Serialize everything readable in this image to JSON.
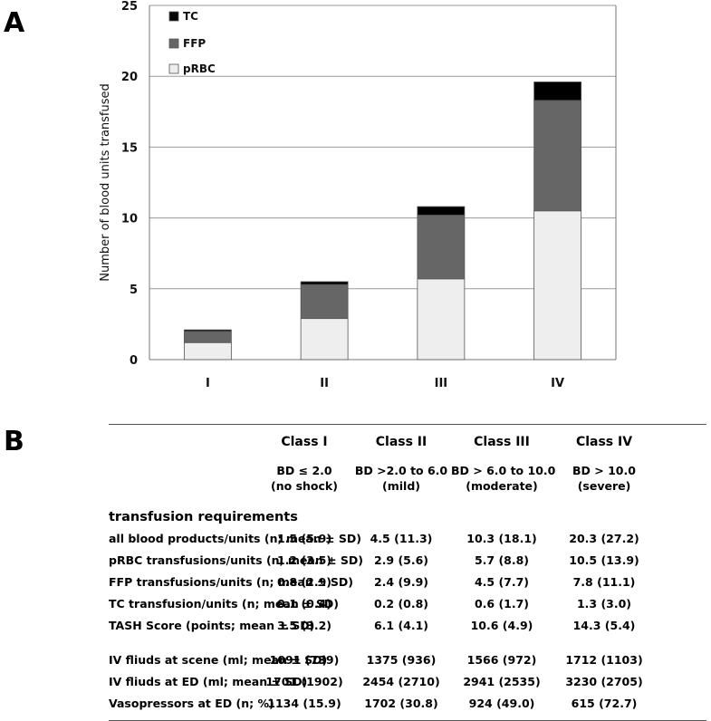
{
  "panel_a": "A",
  "panel_b": "B",
  "chart_data": {
    "type": "bar",
    "stacked": true,
    "categories": [
      "I",
      "II",
      "III",
      "IV"
    ],
    "series": [
      {
        "name": "pRBC",
        "color": "#eeeeee",
        "values": [
          1.2,
          2.9,
          5.7,
          10.5
        ]
      },
      {
        "name": "FFP",
        "color": "#666666",
        "values": [
          0.8,
          2.4,
          4.5,
          7.8
        ]
      },
      {
        "name": "TC",
        "color": "#000000",
        "values": [
          0.1,
          0.2,
          0.6,
          1.3
        ]
      }
    ],
    "legend": [
      "TC",
      "FFP",
      "pRBC"
    ],
    "ylabel": "Number of blood units transfused",
    "xlabel": "",
    "ylim": [
      0,
      25
    ],
    "yticks": [
      0,
      5,
      10,
      15,
      20,
      25
    ],
    "grid": true
  },
  "table": {
    "columns": [
      "Class I",
      "Class II",
      "Class III",
      "Class IV"
    ],
    "definitions": [
      [
        "BD ≤ 2.0",
        "(no shock)"
      ],
      [
        "BD >2.0 to 6.0",
        "(mild)"
      ],
      [
        "BD > 6.0 to 10.0",
        "(moderate)"
      ],
      [
        "BD > 10.0",
        "(severe)"
      ]
    ],
    "section_title": "transfusion requirements",
    "rows": [
      {
        "label": "all blood products/units (n; mean ± SD)",
        "values": [
          "1.5 (5.9)",
          "4.5 (11.3)",
          "10.3 (18.1)",
          "20.3 (27.2)"
        ]
      },
      {
        "label": "pRBC transfusions/units (n; mean ± SD)",
        "values": [
          "1.2 (3.5)",
          "2.9 (5.6)",
          "5.7 (8.8)",
          "10.5 (13.9)"
        ]
      },
      {
        "label": "FFP transfusions/units (n; mean ± SD)",
        "values": [
          "0.8 (2.9)",
          "2.4 (9.9)",
          "4.5 (7.7)",
          "7.8 (11.1)"
        ]
      },
      {
        "label": "TC transfusion/units (n; mean ± SD)",
        "values": [
          "0.1 (0.4)",
          "0.2 (0.8)",
          "0.6 (1.7)",
          "1.3 (3.0)"
        ]
      },
      {
        "label": "TASH Score (points; mean ± SD)",
        "values": [
          "3.5 (3.2)",
          "6.1 (4.1)",
          "10.6 (4.9)",
          "14.3 (5.4)"
        ]
      }
    ],
    "rows2": [
      {
        "label": "IV fliuds at scene (ml; mean ± SD)",
        "values": [
          "1091 (739)",
          "1375 (936)",
          "1566 (972)",
          "1712 (1103)"
        ]
      },
      {
        "label": "IV fliuds at ED (ml; mean ± SD)",
        "values": [
          "1701 (1902)",
          "2454 (2710)",
          "2941 (2535)",
          "3230 (2705)"
        ]
      },
      {
        "label": "Vasopressors at ED (n; %)",
        "values": [
          "1134 (15.9)",
          "1702 (30.8)",
          "924 (49.0)",
          "615 (72.7)"
        ]
      }
    ]
  }
}
